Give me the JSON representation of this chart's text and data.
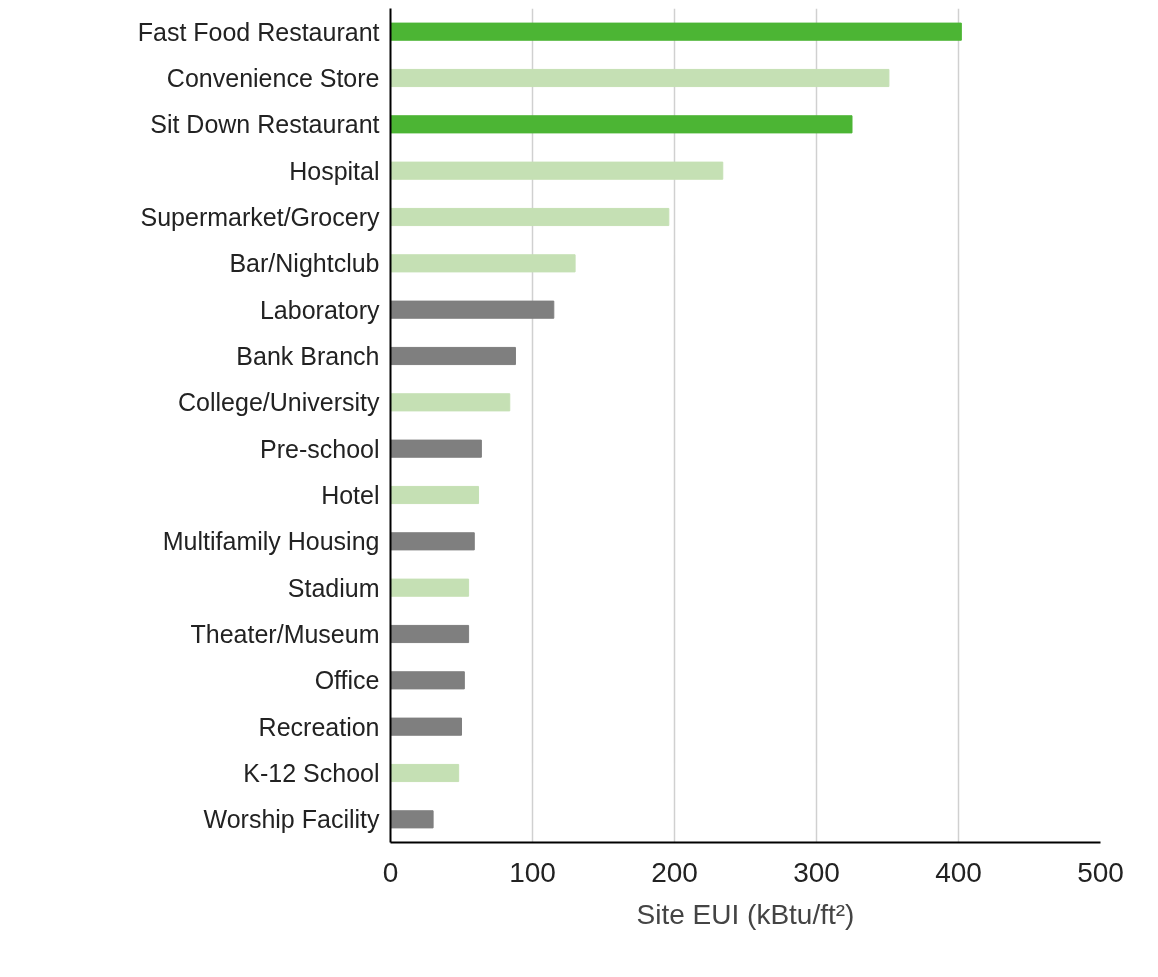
{
  "chart_data": {
    "type": "bar",
    "orientation": "horizontal",
    "xlabel": "Site EUI (kBtu/ft²)",
    "categories": [
      "Fast Food Restaurant",
      "Convenience Store",
      "Sit Down Restaurant",
      "Hospital",
      "Supermarket/Grocery",
      "Bar/Nightclub",
      "Laboratory",
      "Bank Branch",
      "College/University",
      "Pre-school",
      "Hotel",
      "Multifamily Housing",
      "Stadium",
      "Theater/Museum",
      "Office",
      "Recreation",
      "K-12 School",
      "Worship Facility"
    ],
    "values": [
      402,
      351,
      325,
      234,
      196,
      130,
      115,
      88,
      84,
      64,
      62,
      59,
      55,
      55,
      52,
      50,
      48,
      30
    ],
    "colors": [
      "#4cb534",
      "#c5e0b4",
      "#4cb534",
      "#c5e0b4",
      "#c5e0b4",
      "#c5e0b4",
      "#7f7f7f",
      "#7f7f7f",
      "#c5e0b4",
      "#7f7f7f",
      "#c5e0b4",
      "#7f7f7f",
      "#c5e0b4",
      "#7f7f7f",
      "#7f7f7f",
      "#7f7f7f",
      "#c5e0b4",
      "#7f7f7f"
    ],
    "xlim": [
      0,
      500
    ],
    "xticks": [
      0,
      100,
      200,
      300,
      400,
      500
    ],
    "grid": "x"
  }
}
